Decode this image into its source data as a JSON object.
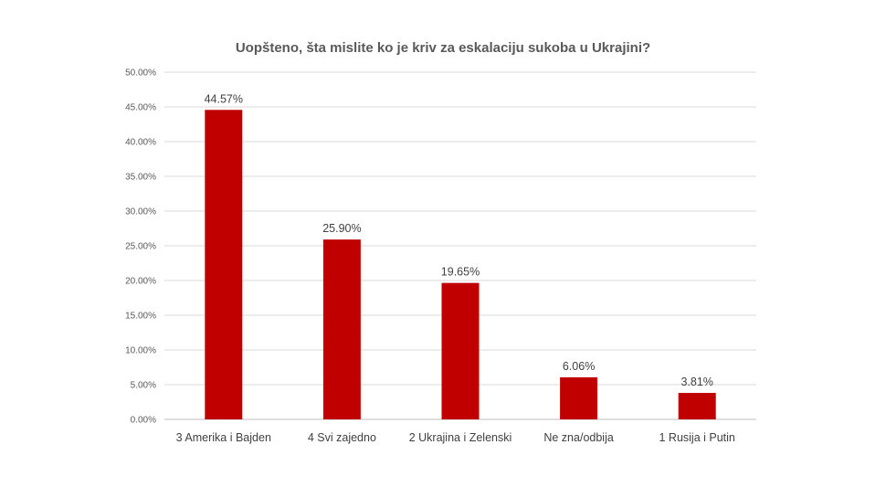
{
  "chart_data": {
    "type": "bar",
    "title": "Uopšteno, šta mislite ko je kriv za eskalaciju sukoba u Ukrajini?",
    "categories": [
      "3 Amerika i Bajden",
      "4 Svi zajedno",
      "2 Ukrajina i Zelenski",
      "Ne zna/odbija",
      "1 Rusija i Putin"
    ],
    "values": [
      44.57,
      25.9,
      19.65,
      6.06,
      3.81
    ],
    "data_labels": [
      "44.57%",
      "25.90%",
      "19.65%",
      "6.06%",
      "3.81%"
    ],
    "y_ticks": [
      "0.00%",
      "5.00%",
      "10.00%",
      "15.00%",
      "20.00%",
      "25.00%",
      "30.00%",
      "35.00%",
      "40.00%",
      "45.00%",
      "50.00%"
    ],
    "ylim": [
      0,
      50
    ],
    "grid": true,
    "legend": "none",
    "bar_color": "#c00000"
  }
}
